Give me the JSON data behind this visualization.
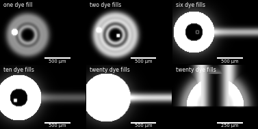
{
  "panels": [
    {
      "label": "one dye fill",
      "scale_bar": "500 μm",
      "row": 0,
      "col": 0
    },
    {
      "label": "two dye fills",
      "scale_bar": "500 μm",
      "row": 0,
      "col": 1
    },
    {
      "label": "six dye fills",
      "scale_bar": "500 μm",
      "row": 0,
      "col": 2
    },
    {
      "label": "ten dye fills",
      "scale_bar": "500 μm",
      "row": 1,
      "col": 0
    },
    {
      "label": "twenty dye fills",
      "scale_bar": "500 μm",
      "row": 1,
      "col": 1
    },
    {
      "label": "twenty dye fills",
      "scale_bar": "250 μm",
      "row": 1,
      "col": 2
    }
  ],
  "bg_color": "#000000",
  "text_color": "#ffffff",
  "scale_bar_color": "#ffffff",
  "label_fontsize": 5.5,
  "scalebar_fontsize": 4.8,
  "figsize": [
    3.77,
    1.89
  ],
  "dpi": 100
}
